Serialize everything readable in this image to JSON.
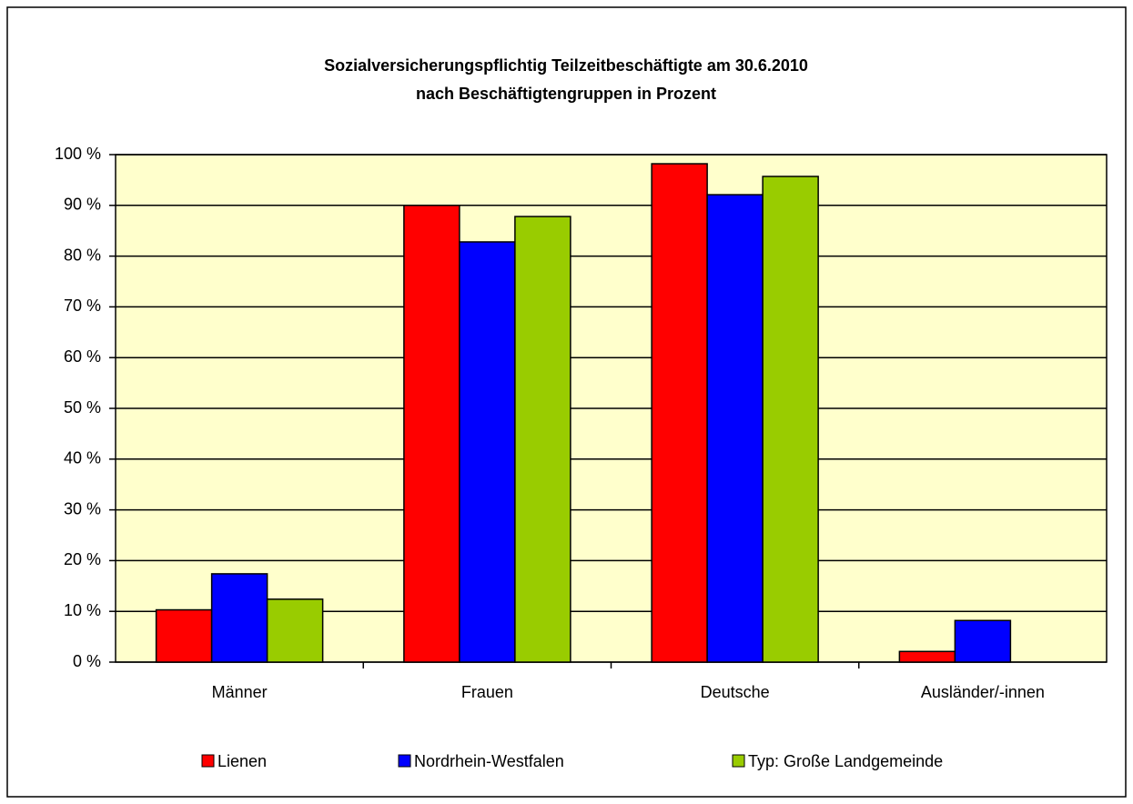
{
  "chart_data": {
    "type": "bar",
    "title": [
      "Sozialversicherungspflichtig Teilzeitbeschäftigte am 30.6.2010",
      "nach Beschäftigtengruppen in Prozent"
    ],
    "categories": [
      "Männer",
      "Frauen",
      "Deutsche",
      "Ausländer/-innen"
    ],
    "series": [
      {
        "name": "Lienen",
        "color": "#ff0000",
        "values": [
          10.3,
          90.0,
          98.2,
          2.1
        ]
      },
      {
        "name": "Nordrhein-Westfalen",
        "color": "#0000ff",
        "values": [
          17.4,
          82.8,
          92.1,
          8.2
        ]
      },
      {
        "name": "Typ: Große Landgemeinde",
        "color": "#99cc00",
        "values": [
          12.4,
          87.8,
          95.7,
          null
        ]
      }
    ],
    "ylim": [
      0,
      100
    ],
    "yticks": [
      {
        "value": 0,
        "label": "0 %"
      },
      {
        "value": 10,
        "label": "10 %"
      },
      {
        "value": 20,
        "label": "20 %"
      },
      {
        "value": 30,
        "label": "30 %"
      },
      {
        "value": 40,
        "label": "40 %"
      },
      {
        "value": 50,
        "label": "50 %"
      },
      {
        "value": 60,
        "label": "60 %"
      },
      {
        "value": 70,
        "label": "70 %"
      },
      {
        "value": 80,
        "label": "80 %"
      },
      {
        "value": 90,
        "label": "90 %"
      },
      {
        "value": 100,
        "label": "100 %"
      }
    ],
    "grid": true,
    "legend": "bottom"
  }
}
